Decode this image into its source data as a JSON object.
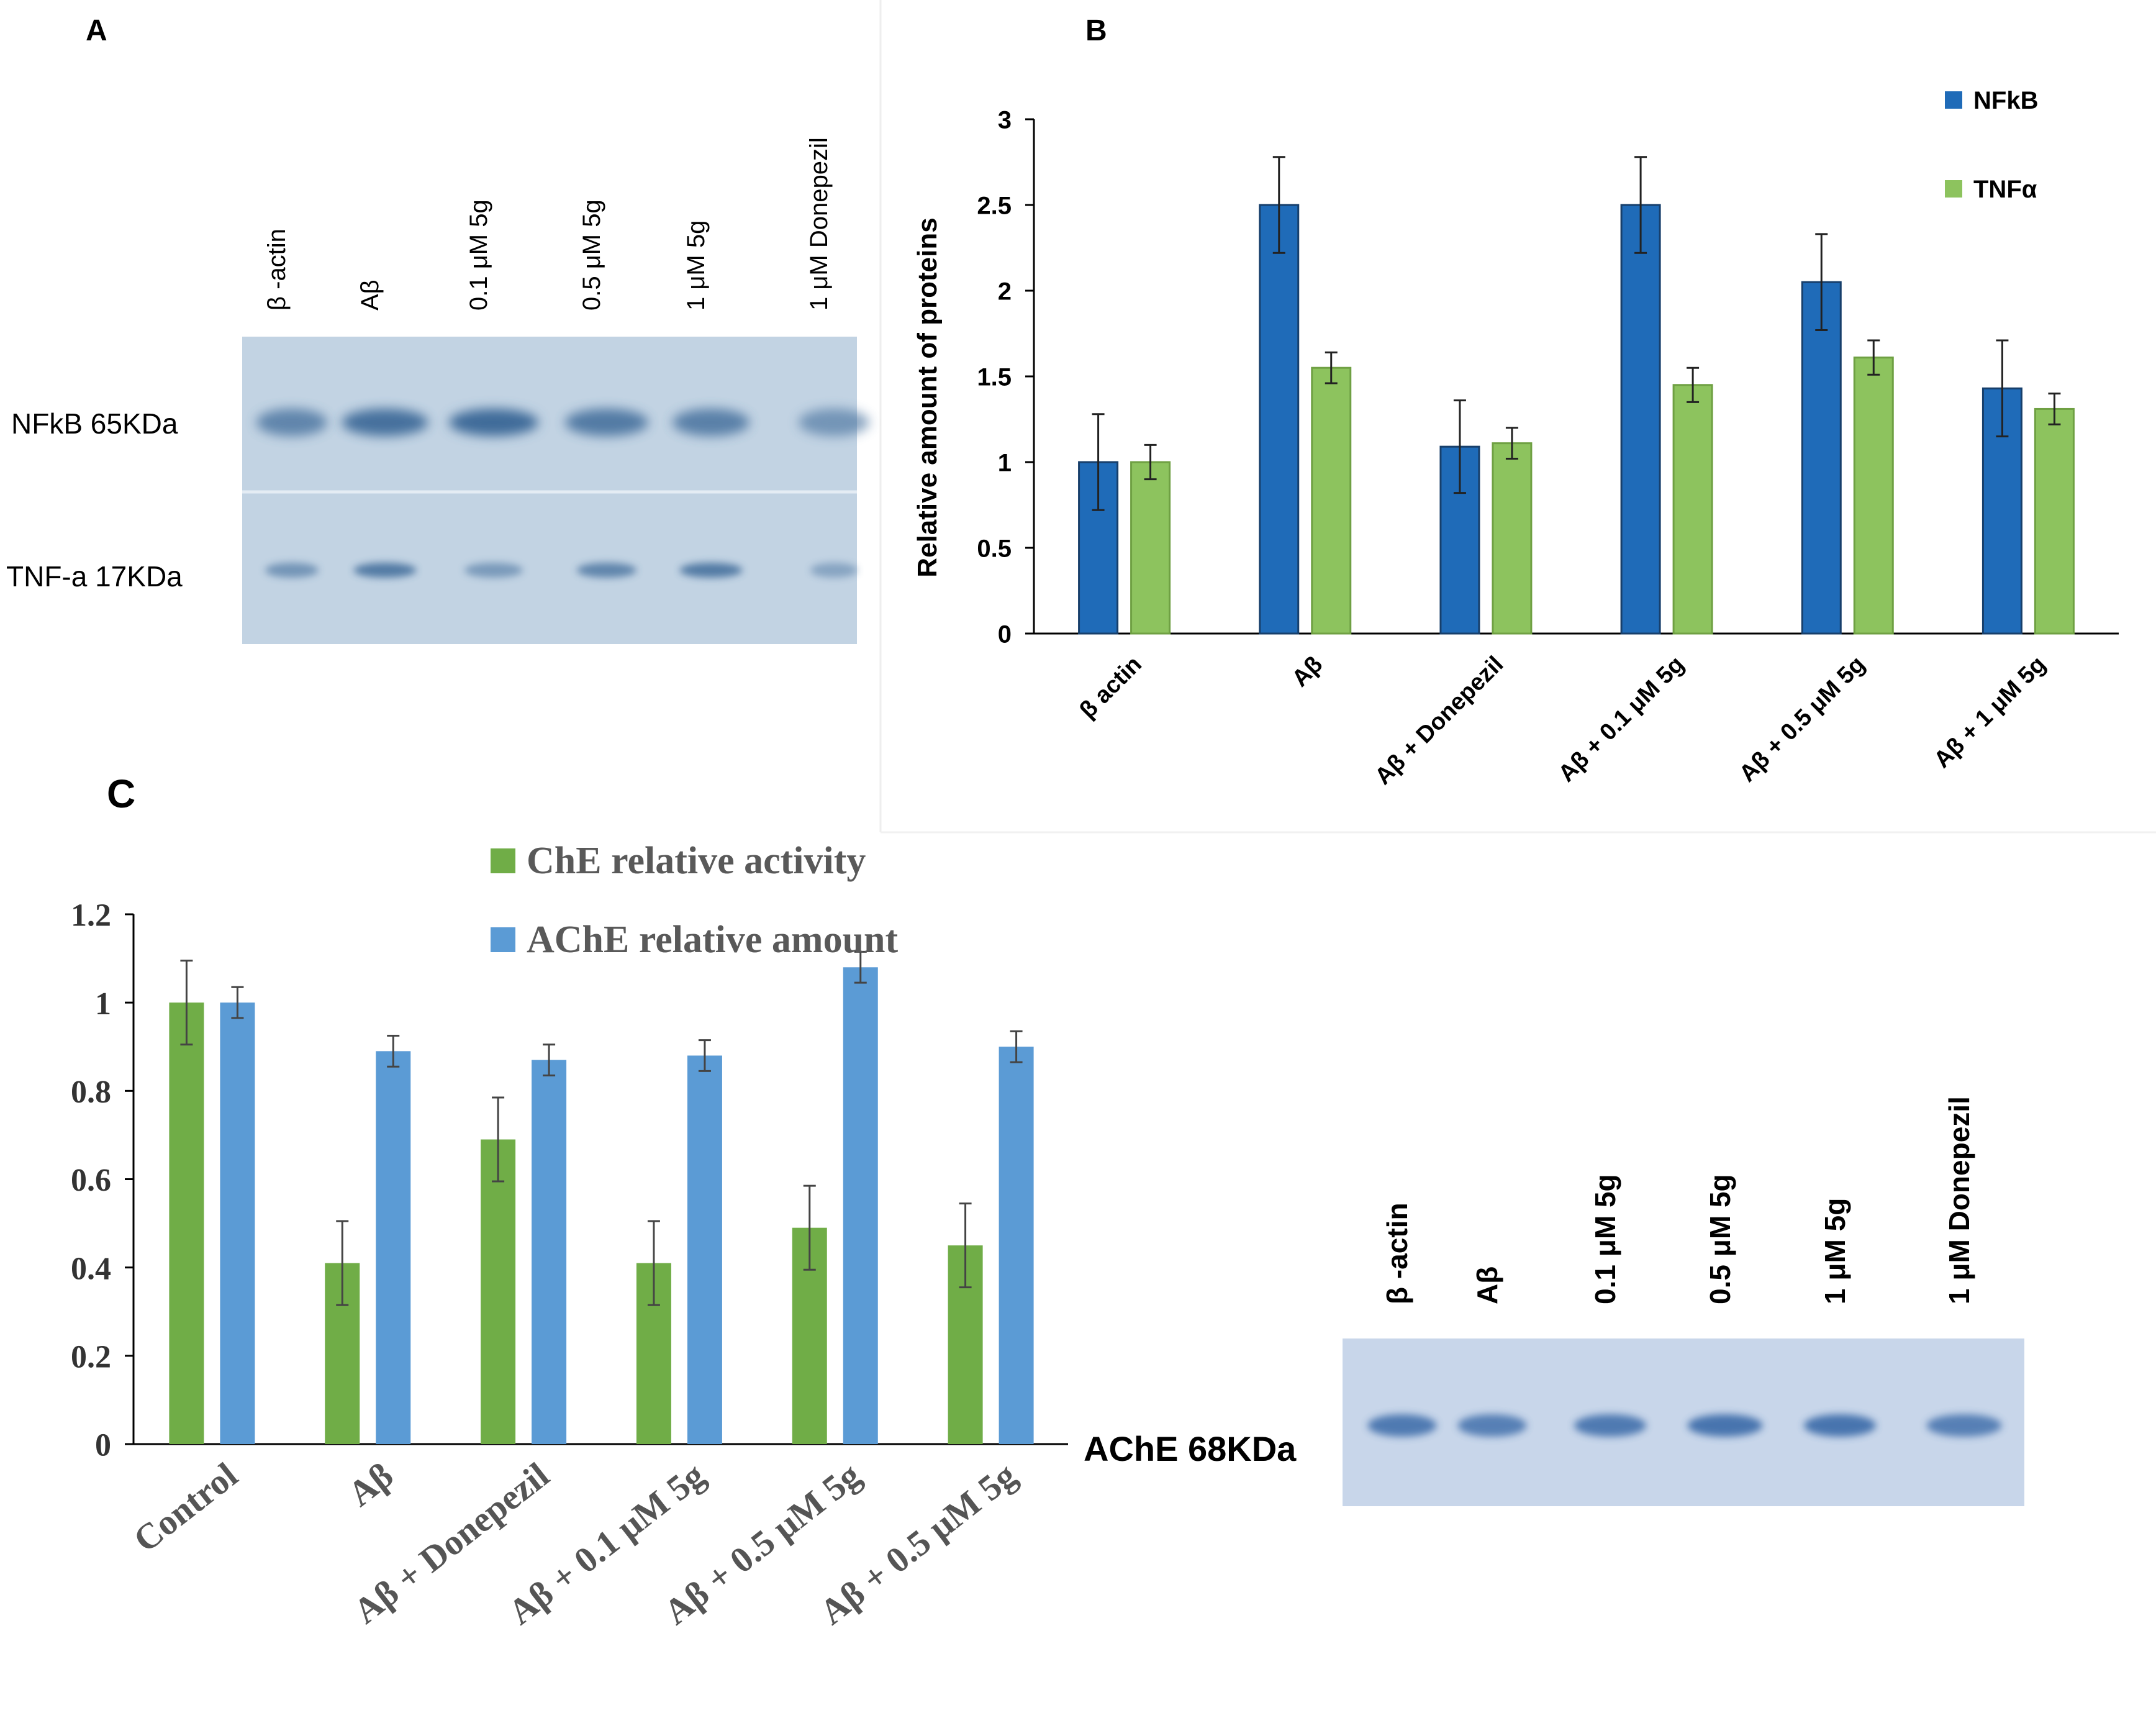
{
  "panels": {
    "a": {
      "letter": "A",
      "lanes": [
        "β -actin",
        "Aβ",
        "0.1 μM 5g",
        "0.5 μM 5g",
        "1 μM 5g",
        "1 μM Donepezil"
      ],
      "rows": [
        "NFkB   65KDa",
        "TNF-a 17KDa"
      ],
      "blot_color": "#c2d3e3",
      "band_color": "#3f6c9a"
    },
    "b": {
      "letter": "B"
    },
    "c": {
      "letter": "C",
      "blot_lanes": [
        "β -actin",
        "Aβ",
        "0.1 μM 5g",
        "0.5 μM 5g",
        "1 μM 5g",
        "1 μM Donepezil"
      ],
      "blot_label": "AChE 68KDa",
      "blot_color": "#c8d6ea",
      "band_color": "#3b6aa8"
    }
  },
  "chart_data": [
    {
      "type": "bar",
      "panel": "B",
      "title": "",
      "xlabel": "",
      "ylabel": "Relative amount of proteins",
      "ylim": [
        0,
        3
      ],
      "yticks": [
        "0",
        "0.5",
        "1",
        "1.5",
        "2",
        "2.5",
        "3"
      ],
      "categories": [
        "β actin",
        "Aβ",
        "Aβ + Donepezil",
        "Aβ +  0.1 μM 5g",
        "Aβ +  0.5 μM 5g",
        "Aβ + 1 μM 5g"
      ],
      "series": [
        {
          "name": "NFkB",
          "color": "#1f6bb8",
          "values": [
            1.0,
            2.5,
            1.09,
            2.5,
            2.05,
            1.43
          ],
          "errors": [
            0.28,
            0.28,
            0.27,
            0.28,
            0.28,
            0.28
          ]
        },
        {
          "name": "TNFα",
          "color": "#8dc35e",
          "values": [
            1.0,
            1.55,
            1.11,
            1.45,
            1.61,
            1.31
          ],
          "errors": [
            0.1,
            0.09,
            0.09,
            0.1,
            0.1,
            0.09
          ]
        }
      ],
      "legend": "top-right"
    },
    {
      "type": "bar",
      "panel": "C",
      "title": "",
      "xlabel": "",
      "ylabel": "",
      "ylim": [
        0,
        1.2
      ],
      "yticks": [
        "0",
        "0.2",
        "0.4",
        "0.6",
        "0.8",
        "1",
        "1.2"
      ],
      "categories": [
        "Control",
        "Aβ",
        "Aβ + Donepezil",
        "Aβ +  0.1 μM 5g",
        "Aβ +  0.5 μM 5g",
        "Aβ +  0.5 μM 5g"
      ],
      "series": [
        {
          "name": "ChE relative activity",
          "color": "#70ad47",
          "values": [
            1.0,
            0.41,
            0.69,
            0.41,
            0.49,
            0.45
          ],
          "errors": [
            0.095,
            0.095,
            0.095,
            0.095,
            0.095,
            0.095
          ]
        },
        {
          "name": "AChE relative amount",
          "color": "#5b9bd5",
          "values": [
            1.0,
            0.89,
            0.87,
            0.88,
            1.08,
            0.9
          ],
          "errors": [
            0.035,
            0.035,
            0.035,
            0.035,
            0.035,
            0.035
          ]
        }
      ],
      "legend": "top-center"
    }
  ]
}
